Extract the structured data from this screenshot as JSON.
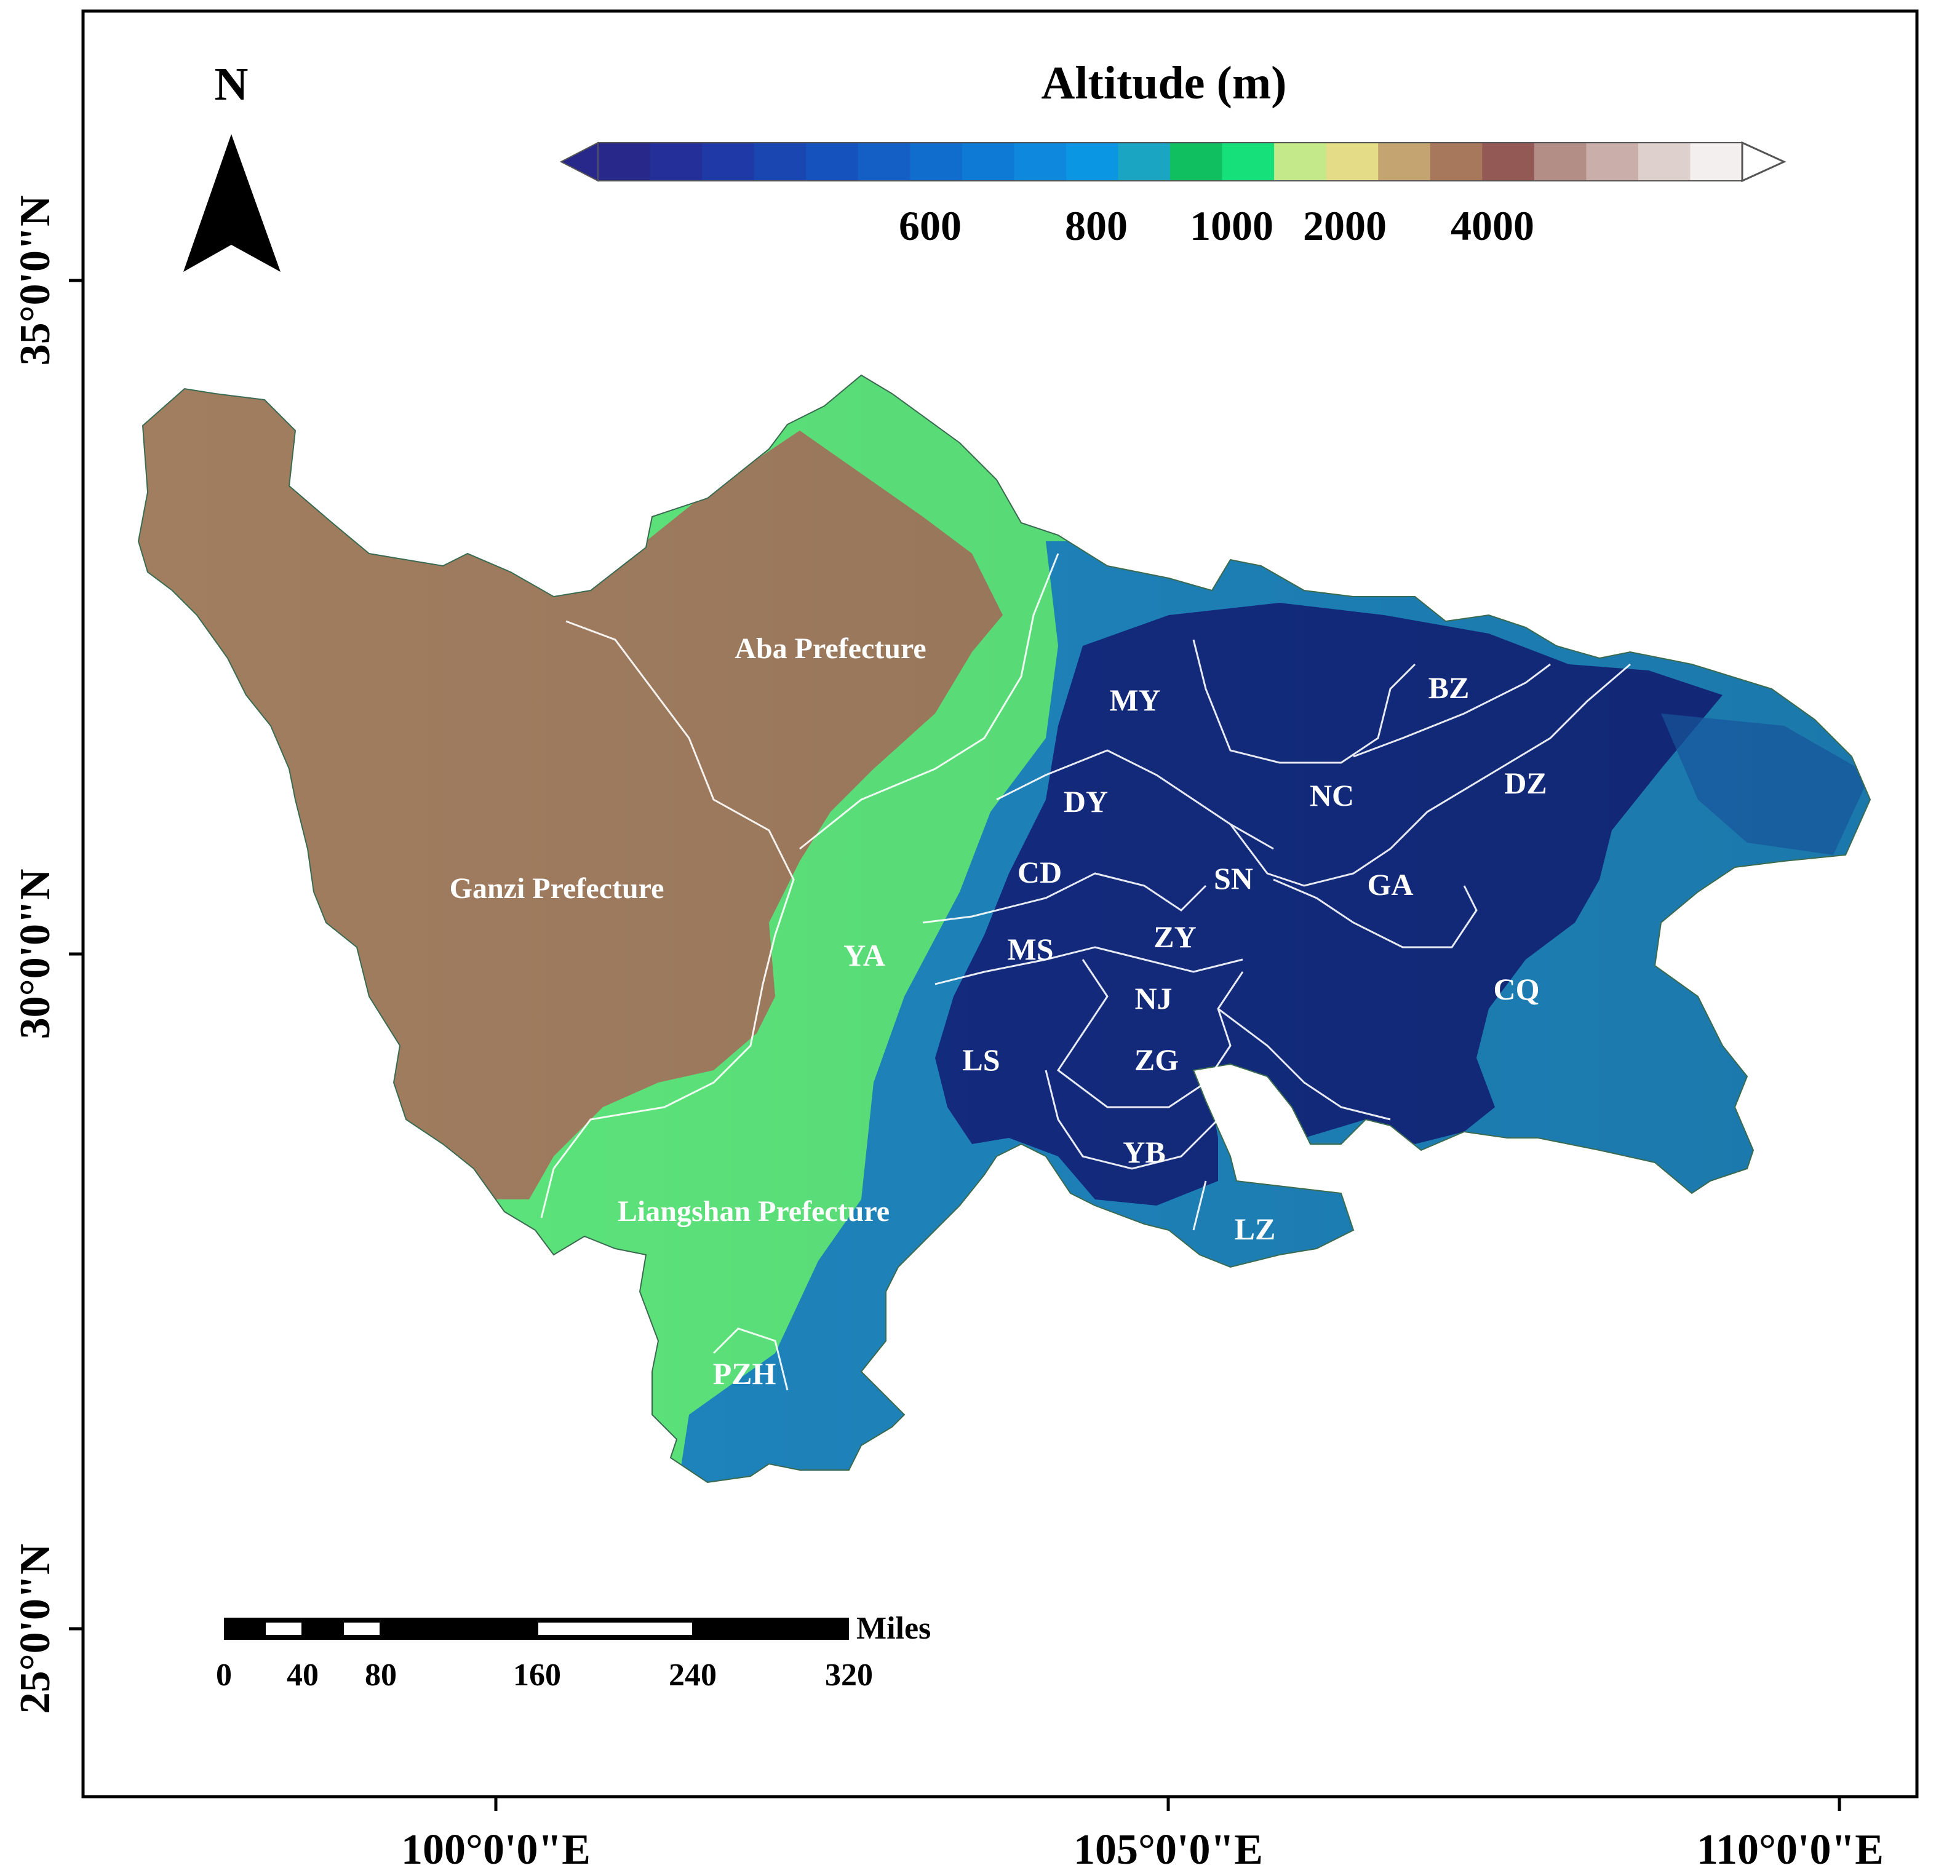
{
  "legend": {
    "title": "Altitude (m)",
    "ticks": [
      "600",
      "800",
      "1000",
      "2000",
      "4000"
    ],
    "colors": [
      "#27288a",
      "#242f99",
      "#1f3aa6",
      "#1a46b2",
      "#1652bd",
      "#135fc5",
      "#106ccd",
      "#0f7ad6",
      "#0d88dc",
      "#0a96e2",
      "#1aa6c2",
      "#10c060",
      "#16e07a",
      "#c3e98b",
      "#e4dc86",
      "#c4a470",
      "#a7785c",
      "#935a55",
      "#b28e87",
      "#c9aea9",
      "#ddd0cd",
      "#f2efee"
    ]
  },
  "north_arrow": {
    "label": "N"
  },
  "axes": {
    "lat_ticks": [
      "35°0'0\"N",
      "30°0'0\"N",
      "25°0'0\"N"
    ],
    "lon_ticks": [
      "100°0'0\"E",
      "105°0'0\"E",
      "110°0'0\"E"
    ]
  },
  "scale_bar": {
    "unit": "Miles",
    "ticks": [
      "0",
      "40",
      "80",
      "160",
      "240",
      "320"
    ]
  },
  "regions": {
    "ganzi": "Ganzi Prefecture",
    "aba": "Aba Prefecture",
    "liangshan": "Liangshan Prefecture",
    "my": "MY",
    "bz": "BZ",
    "dy": "DY",
    "nc": "NC",
    "dz": "DZ",
    "cd": "CD",
    "sn": "SN",
    "ga": "GA",
    "ya": "YA",
    "zy": "ZY",
    "ms": "MS",
    "nj": "NJ",
    "cq": "CQ",
    "ls": "LS",
    "zg": "ZG",
    "yb": "YB",
    "lz": "LZ",
    "pzh": "PZH"
  },
  "map_colors": {
    "highland_brown": "#a27e60",
    "mid_green": "#5ee87e",
    "mid_blue": "#1f88c2",
    "basin_navy": "#142d84"
  }
}
